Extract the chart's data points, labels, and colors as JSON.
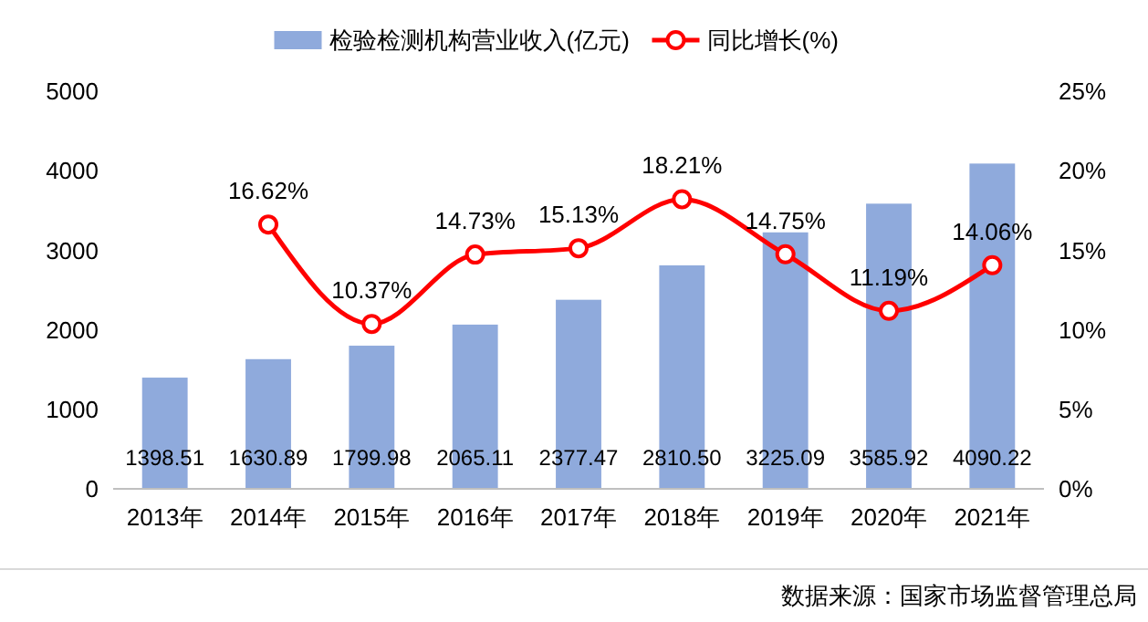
{
  "chart_data": {
    "type": "bar",
    "categories": [
      "2013年",
      "2014年",
      "2015年",
      "2016年",
      "2017年",
      "2018年",
      "2019年",
      "2020年",
      "2021年"
    ],
    "series": [
      {
        "name": "检验检测机构营业收入(亿元)",
        "color": "#8faadc",
        "values": [
          1398.51,
          1630.89,
          1799.98,
          2065.11,
          2377.47,
          2810.5,
          3225.09,
          3585.92,
          4090.22
        ],
        "value_labels": [
          "1398.51",
          "1630.89",
          "1799.98",
          "2065.11",
          "2377.47",
          "2810.50",
          "3225.09",
          "3585.92",
          "4090.22"
        ]
      },
      {
        "name": "同比增长(%)",
        "type": "line",
        "axis": "y2",
        "color": "#ff0000",
        "marker": "circle",
        "values": [
          null,
          16.62,
          10.37,
          14.73,
          15.13,
          18.21,
          14.75,
          11.19,
          14.06
        ],
        "value_labels": [
          null,
          "16.62%",
          "10.37%",
          "14.73%",
          "15.13%",
          "18.21%",
          "14.75%",
          "11.19%",
          "14.06%"
        ]
      }
    ],
    "ylim": [
      0,
      5000
    ],
    "yticks": [
      0,
      1000,
      2000,
      3000,
      4000,
      5000
    ],
    "y2lim": [
      0,
      25
    ],
    "y2ticks": [
      {
        "value": 0,
        "label": "0%"
      },
      {
        "value": 5,
        "label": "5%"
      },
      {
        "value": 10,
        "label": "10%"
      },
      {
        "value": 15,
        "label": "15%"
      },
      {
        "value": 20,
        "label": "20%"
      },
      {
        "value": 25,
        "label": "25%"
      }
    ],
    "legend": "top",
    "grid": false,
    "annotations": [
      "数据来源：国家市场监督管理总局"
    ]
  }
}
